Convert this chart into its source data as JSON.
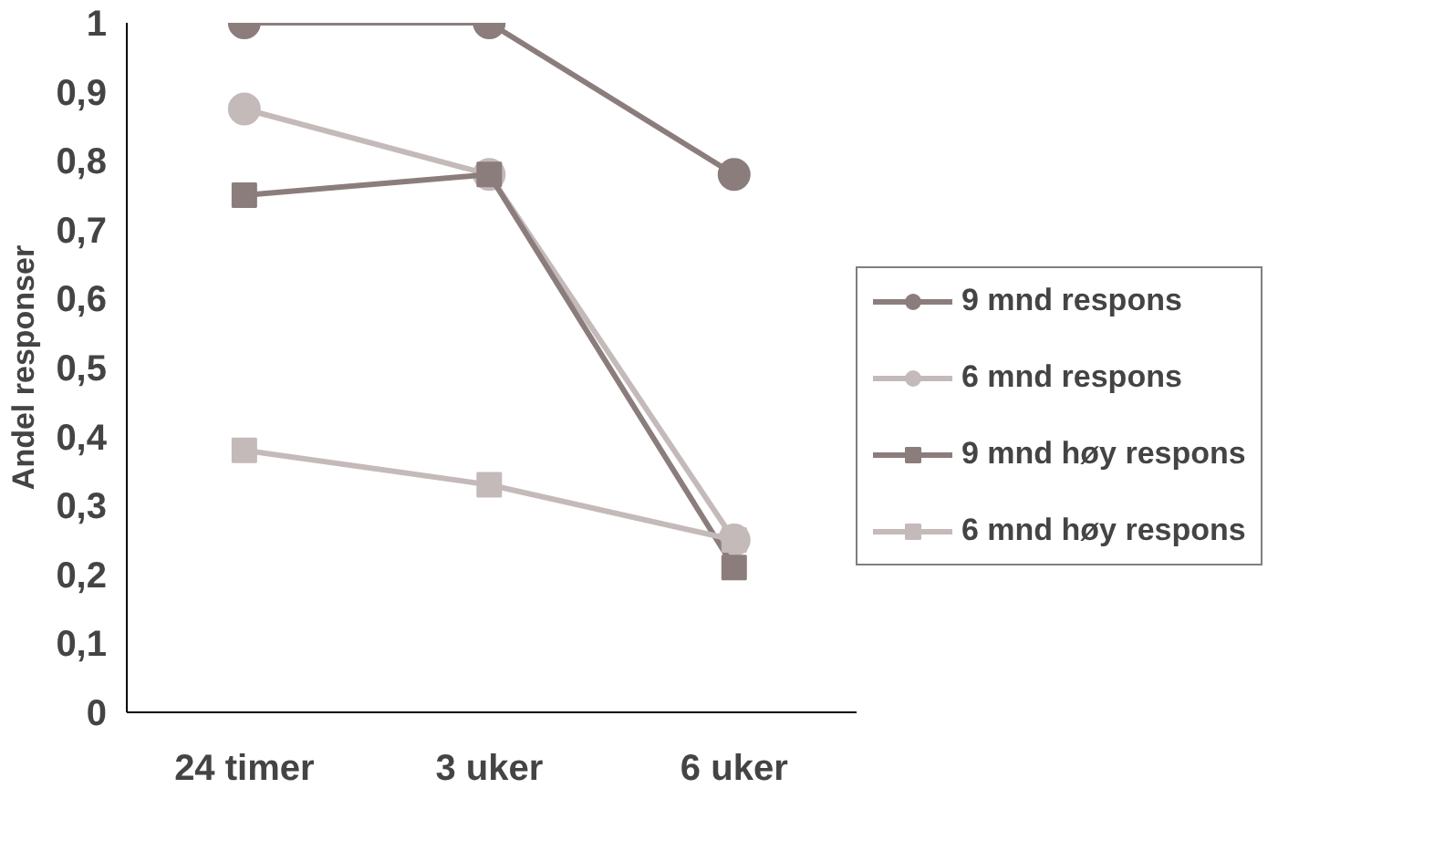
{
  "chart_data": {
    "type": "line",
    "ylabel": "Andel responser",
    "categories": [
      "24 timer",
      "3 uker",
      "6 uker"
    ],
    "ylim": [
      0,
      1
    ],
    "yticks": [
      0,
      {
        "value": 0.1,
        "label": "0,1"
      },
      {
        "value": 0.2,
        "label": "0,2"
      },
      {
        "value": 0.3,
        "label": "0,3"
      },
      {
        "value": 0.4,
        "label": "0,4"
      },
      {
        "value": 0.5,
        "label": "0,5"
      },
      {
        "value": 0.6,
        "label": "0,6"
      },
      {
        "value": 0.7,
        "label": "0,7"
      },
      {
        "value": 0.8,
        "label": "0,8"
      },
      {
        "value": 0.9,
        "label": "0,9"
      },
      1
    ],
    "grid": false,
    "legend": "right",
    "line_style": "solid",
    "series": [
      {
        "name": "9 mnd respons",
        "color": "#8c7d7d",
        "marker": "circle",
        "values": [
          1,
          1,
          0.78
        ]
      },
      {
        "name": "6 mnd respons",
        "color": "#c4baba",
        "marker": "circle",
        "values": [
          0.875,
          0.78,
          0.25
        ]
      },
      {
        "name": "9 mnd høy respons",
        "color": "#8c7d7d",
        "marker": "square",
        "values": [
          0.75,
          0.78,
          0.21
        ]
      },
      {
        "name": "6 mnd høy respons",
        "color": "#c4baba",
        "marker": "square",
        "values": [
          0.38,
          0.33,
          0.25
        ]
      }
    ]
  }
}
